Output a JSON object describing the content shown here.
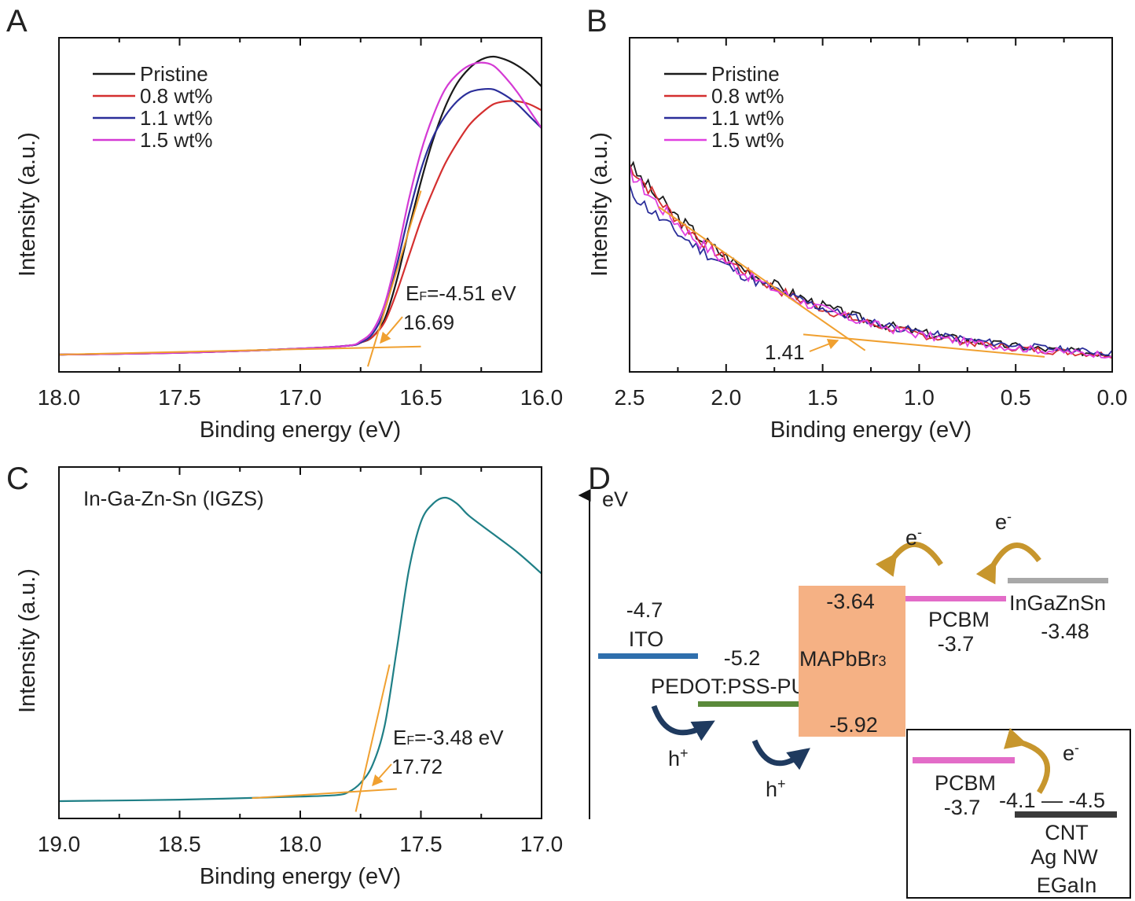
{
  "panels": {
    "a": {
      "letter": "A",
      "xlabel": "Binding energy (eV)",
      "ylabel": "Intensity (a.u.)",
      "ef_prefix": "E",
      "ef_sub": "F",
      "ef_value": "=-4.51 eV",
      "cutoff_label": "16.69"
    },
    "b": {
      "letter": "B",
      "xlabel": "Binding energy (eV)",
      "ylabel": "Intensity (a.u.)",
      "onset_label": "1.41"
    },
    "c": {
      "letter": "C",
      "title": "In-Ga-Zn-Sn (IGZS)",
      "xlabel": "Binding energy (eV)",
      "ylabel": "Intensity (a.u.)",
      "ef_prefix": "E",
      "ef_sub": "F",
      "ef_value": "=-3.48 eV",
      "cutoff_label": "17.72"
    },
    "d": {
      "letter": "D",
      "axis_label": "eV",
      "ito_value": "-4.7",
      "ito_label": "ITO",
      "pedot_value": "-5.2",
      "pedot_label": "PEDOT:PSS-PU",
      "mapbbr_top": "-3.64",
      "mapbbr_label": "MAPbBr",
      "mapbbr_sub": "3",
      "mapbbr_bottom": "-5.92",
      "pcbm_label": "PCBM",
      "pcbm_value": "-3.7",
      "igzs_label": "InGaZnSn",
      "igzs_value": "-3.48",
      "inset_pcbm_label": "PCBM",
      "inset_pcbm_value": "-3.7",
      "inset_range": "-4.1 — -4.5",
      "inset_cnt": "CNT",
      "inset_agnw": "Ag NW",
      "inset_egain": "EGaIn",
      "electron": "e",
      "electron_sup": "-",
      "hole": "h",
      "hole_sup": "+"
    }
  },
  "chart_data": [
    {
      "type": "line",
      "panel": "A",
      "xlabel": "Binding energy (eV)",
      "ylabel": "Intensity (a.u.)",
      "xlim": [
        18.0,
        16.0
      ],
      "ylim": [
        0,
        1.0
      ],
      "x_ticks": [
        "18.0",
        "17.5",
        "17.0",
        "16.5",
        "16.0"
      ],
      "x_tick_values": [
        18.0,
        17.5,
        17.0,
        16.5,
        16.0
      ],
      "legend_position": "top-left",
      "series": [
        {
          "name": "Pristine",
          "color": "#1a1a1a",
          "x": [
            18.0,
            17.5,
            17.0,
            16.8,
            16.75,
            16.7,
            16.65,
            16.6,
            16.55,
            16.5,
            16.45,
            16.4,
            16.35,
            16.3,
            16.25,
            16.2,
            16.15,
            16.1,
            16.05,
            16.0
          ],
          "y": [
            0.0,
            0.006,
            0.02,
            0.03,
            0.04,
            0.06,
            0.12,
            0.25,
            0.42,
            0.58,
            0.72,
            0.83,
            0.91,
            0.96,
            0.99,
            1.0,
            0.99,
            0.97,
            0.94,
            0.9
          ]
        },
        {
          "name": "0.8 wt%",
          "color": "#d42f2f",
          "x": [
            18.0,
            17.5,
            17.0,
            16.8,
            16.75,
            16.7,
            16.65,
            16.6,
            16.55,
            16.5,
            16.45,
            16.4,
            16.35,
            16.3,
            16.25,
            16.2,
            16.15,
            16.1,
            16.05,
            16.0
          ],
          "y": [
            0.0,
            0.006,
            0.02,
            0.03,
            0.04,
            0.06,
            0.11,
            0.21,
            0.33,
            0.45,
            0.55,
            0.64,
            0.71,
            0.77,
            0.81,
            0.84,
            0.85,
            0.85,
            0.84,
            0.82
          ]
        },
        {
          "name": "1.1 wt%",
          "color": "#2b2e9a",
          "x": [
            18.0,
            17.5,
            17.0,
            16.8,
            16.75,
            16.7,
            16.65,
            16.6,
            16.55,
            16.5,
            16.45,
            16.4,
            16.35,
            16.3,
            16.25,
            16.2,
            16.15,
            16.1,
            16.05,
            16.0
          ],
          "y": [
            0.0,
            0.006,
            0.02,
            0.03,
            0.04,
            0.07,
            0.15,
            0.3,
            0.47,
            0.62,
            0.73,
            0.8,
            0.85,
            0.88,
            0.89,
            0.89,
            0.87,
            0.84,
            0.8,
            0.76
          ]
        },
        {
          "name": "1.5 wt%",
          "color": "#d43ad4",
          "x": [
            18.0,
            17.5,
            17.0,
            16.8,
            16.75,
            16.7,
            16.65,
            16.6,
            16.55,
            16.5,
            16.45,
            16.4,
            16.35,
            16.3,
            16.25,
            16.2,
            16.15,
            16.1,
            16.05,
            16.0
          ],
          "y": [
            0.0,
            0.006,
            0.02,
            0.03,
            0.045,
            0.08,
            0.17,
            0.33,
            0.52,
            0.68,
            0.8,
            0.89,
            0.94,
            0.97,
            0.98,
            0.97,
            0.93,
            0.88,
            0.82,
            0.76
          ]
        }
      ],
      "tangent_lines": [
        {
          "x": [
            18.0,
            16.5
          ],
          "y": [
            0.0,
            0.027
          ]
        },
        {
          "x": [
            16.72,
            16.5
          ],
          "y": [
            -0.04,
            0.55
          ]
        }
      ],
      "annotations": [
        {
          "text": "E_F=-4.51 eV"
        },
        {
          "text": "16.69",
          "x": 16.69
        }
      ]
    },
    {
      "type": "line",
      "panel": "B",
      "xlabel": "Binding energy (eV)",
      "ylabel": "Intensity (a.u.)",
      "xlim": [
        2.5,
        0.0
      ],
      "ylim": [
        0,
        1.0
      ],
      "x_ticks": [
        "2.5",
        "2.0",
        "1.5",
        "1.0",
        "0.5",
        "0.0"
      ],
      "x_tick_values": [
        2.5,
        2.0,
        1.5,
        1.0,
        0.5,
        0.0
      ],
      "legend_position": "top-left",
      "series": [
        {
          "name": "Pristine",
          "color": "#1a1a1a",
          "x_start": 2.5,
          "x_end": 0.0,
          "y_start": 0.62,
          "decay": 1.25,
          "noise": 0.025,
          "seed": 3
        },
        {
          "name": "0.8 wt%",
          "color": "#d42f2f",
          "x_start": 2.5,
          "x_end": 0.0,
          "y_start": 0.62,
          "decay": 1.3,
          "noise": 0.022,
          "seed": 7
        },
        {
          "name": "1.1 wt%",
          "color": "#2b2e9a",
          "x_start": 2.5,
          "x_end": 0.0,
          "y_start": 0.54,
          "decay": 1.15,
          "noise": 0.022,
          "seed": 11
        },
        {
          "name": "1.5 wt%",
          "color": "#e040e0",
          "x_start": 2.5,
          "x_end": 0.0,
          "y_start": 0.6,
          "decay": 1.28,
          "noise": 0.024,
          "seed": 17
        }
      ],
      "tangent_lines": [
        {
          "x": [
            2.35,
            1.28
          ],
          "y": [
            0.5,
            0.05
          ]
        },
        {
          "x": [
            1.6,
            0.35
          ],
          "y": [
            0.1,
            0.03
          ]
        }
      ],
      "annotations": [
        {
          "text": "1.41",
          "x": 1.41
        }
      ]
    },
    {
      "type": "line",
      "panel": "C",
      "title": "In-Ga-Zn-Sn (IGZS)",
      "xlabel": "Binding energy (eV)",
      "ylabel": "Intensity (a.u.)",
      "xlim": [
        19.0,
        17.0
      ],
      "ylim": [
        0,
        1.0
      ],
      "x_ticks": [
        "19.0",
        "18.5",
        "18.0",
        "17.5",
        "17.0"
      ],
      "x_tick_values": [
        19.0,
        18.5,
        18.0,
        17.5,
        17.0
      ],
      "series": [
        {
          "name": "",
          "color": "#1f7f86",
          "x": [
            19.0,
            18.5,
            18.0,
            17.85,
            17.8,
            17.75,
            17.7,
            17.65,
            17.6,
            17.55,
            17.5,
            17.45,
            17.4,
            17.35,
            17.3,
            17.2,
            17.1,
            17.0
          ],
          "y": [
            0.0,
            0.005,
            0.015,
            0.02,
            0.03,
            0.06,
            0.12,
            0.25,
            0.5,
            0.76,
            0.92,
            0.98,
            1.0,
            0.98,
            0.94,
            0.88,
            0.82,
            0.75
          ]
        }
      ],
      "tangent_lines": [
        {
          "x": [
            18.2,
            17.6
          ],
          "y": [
            0.01,
            0.04
          ]
        },
        {
          "x": [
            17.77,
            17.63
          ],
          "y": [
            -0.035,
            0.45
          ]
        }
      ],
      "annotations": [
        {
          "text": "E_F=-3.48 eV"
        },
        {
          "text": "17.72",
          "x": 17.72
        }
      ]
    }
  ],
  "colors": {
    "tangent": "#f0a030",
    "ito": "#2f6fad",
    "pedot": "#5a8a3a",
    "mapbbr": "#f5b184",
    "pcbm": "#e36cc8",
    "igzs": "#a8a8a8",
    "electrode": "#3a3a3a",
    "electron_arrow": "#c7962d",
    "hole_arrow": "#1f3a5f"
  }
}
